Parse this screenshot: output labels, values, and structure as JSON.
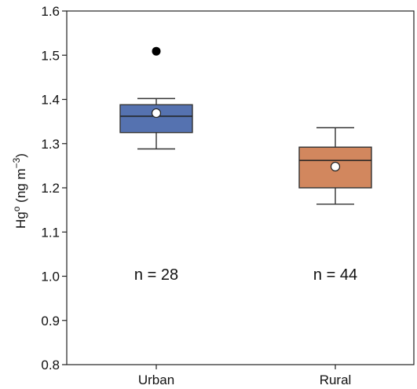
{
  "chart_data": {
    "type": "box",
    "ylabel": {
      "base": "Hg",
      "superscript": "o",
      "unit_open": " (ng m",
      "unit_exp": "−3",
      "unit_close": ")"
    },
    "ylim": [
      0.8,
      1.6
    ],
    "yticks": [
      "0.8",
      "0.9",
      "1.0",
      "1.1",
      "1.2",
      "1.3",
      "1.4",
      "1.5",
      "1.6"
    ],
    "categories": [
      "Urban",
      "Rural"
    ],
    "boxes": [
      {
        "category": "Urban",
        "color": "#5572b0",
        "whisker_low": 1.288,
        "q1": 1.325,
        "median": 1.362,
        "q3": 1.388,
        "whisker_high": 1.402,
        "mean": 1.369,
        "outliers": [
          1.509
        ],
        "n_label": "n = 28"
      },
      {
        "category": "Rural",
        "color": "#d2875e",
        "whisker_low": 1.163,
        "q1": 1.2,
        "median": 1.262,
        "q3": 1.292,
        "whisker_high": 1.336,
        "mean": 1.248,
        "outliers": [],
        "n_label": "n = 44"
      }
    ]
  }
}
